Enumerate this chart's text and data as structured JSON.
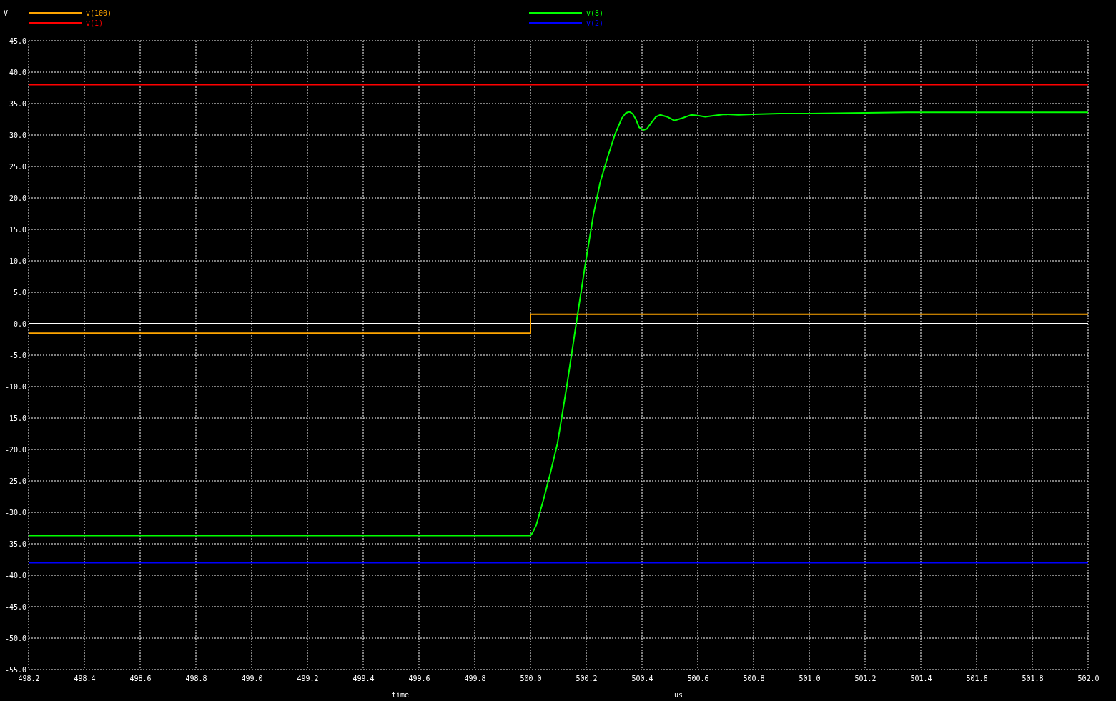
{
  "chart_data": {
    "type": "line",
    "ylabel": "V",
    "xlabel": "time",
    "annotations": [
      "us"
    ],
    "xlim": [
      498.2,
      502.0
    ],
    "xticks": [
      {
        "value": 498.2,
        "label": "498.2"
      },
      {
        "value": 498.4,
        "label": "498.4"
      },
      {
        "value": 498.6,
        "label": "498.6"
      },
      {
        "value": 498.8,
        "label": "498.8"
      },
      {
        "value": 499.0,
        "label": "499.0"
      },
      {
        "value": 499.2,
        "label": "499.2"
      },
      {
        "value": 499.4,
        "label": "499.4"
      },
      {
        "value": 499.6,
        "label": "499.6"
      },
      {
        "value": 499.8,
        "label": "499.8"
      },
      {
        "value": 500.0,
        "label": "500.0"
      },
      {
        "value": 500.2,
        "label": "500.2"
      },
      {
        "value": 500.4,
        "label": "500.4"
      },
      {
        "value": 500.6,
        "label": "500.6"
      },
      {
        "value": 500.8,
        "label": "500.8"
      },
      {
        "value": 501.0,
        "label": "501.0"
      },
      {
        "value": 501.2,
        "label": "501.2"
      },
      {
        "value": 501.4,
        "label": "501.4"
      },
      {
        "value": 501.6,
        "label": "501.6"
      },
      {
        "value": 501.8,
        "label": "501.8"
      },
      {
        "value": 502.0,
        "label": "502.0"
      }
    ],
    "ylim": [
      -55,
      45
    ],
    "yticks": [
      {
        "value": -55,
        "label": "-55.0"
      },
      {
        "value": -50,
        "label": "-50.0"
      },
      {
        "value": -45,
        "label": "-45.0"
      },
      {
        "value": -40,
        "label": "-40.0"
      },
      {
        "value": -35,
        "label": "-35.0"
      },
      {
        "value": -30,
        "label": "-30.0"
      },
      {
        "value": -25,
        "label": "-25.0"
      },
      {
        "value": -20,
        "label": "-20.0"
      },
      {
        "value": -15,
        "label": "-15.0"
      },
      {
        "value": -10,
        "label": "-10.0"
      },
      {
        "value": -5,
        "label": "-5.0"
      },
      {
        "value": 0,
        "label": "0.0"
      },
      {
        "value": 5,
        "label": "5.0"
      },
      {
        "value": 10,
        "label": "10.0"
      },
      {
        "value": 15,
        "label": "15.0"
      },
      {
        "value": 20,
        "label": "20.0"
      },
      {
        "value": 25,
        "label": "25.0"
      },
      {
        "value": 30,
        "label": "30.0"
      },
      {
        "value": 35,
        "label": "35.0"
      },
      {
        "value": 40,
        "label": "40.0"
      },
      {
        "value": 45,
        "label": "45.0"
      }
    ],
    "grid": true,
    "legend": "top",
    "line_style": "solid",
    "ref_lines": [
      {
        "axis": "y",
        "value": 0,
        "label": null,
        "color": "#ffffff"
      }
    ],
    "series": [
      {
        "name": "v(100)",
        "color": "#ffa500",
        "x": [
          498.2,
          500.0,
          500.0,
          502.0
        ],
        "values": [
          -1.5,
          -1.5,
          1.5,
          1.5
        ]
      },
      {
        "name": "v(1)",
        "color": "#ff0000",
        "x": [
          498.2,
          502.0
        ],
        "values": [
          38.0,
          38.0
        ]
      },
      {
        "name": "v(8)",
        "color": "#00ff00",
        "x": [
          498.2,
          500.0,
          500.008,
          500.021,
          500.046,
          500.07,
          500.097,
          500.13,
          500.164,
          500.195,
          500.226,
          500.25,
          500.277,
          500.303,
          500.328,
          500.342,
          500.354,
          500.366,
          500.378,
          500.39,
          500.405,
          500.418,
          500.431,
          500.45,
          500.465,
          500.49,
          500.516,
          500.545,
          500.576,
          500.6,
          500.627,
          500.66,
          500.695,
          500.746,
          500.8,
          500.892,
          501.0,
          501.35,
          502.0
        ],
        "values": [
          -33.7,
          -33.7,
          -33.2,
          -32.0,
          -28.1,
          -24.0,
          -19.0,
          -10.0,
          0.0,
          9.0,
          17.4,
          22.5,
          26.5,
          30.1,
          32.7,
          33.5,
          33.7,
          33.4,
          32.5,
          31.2,
          30.8,
          31.0,
          31.8,
          32.9,
          33.2,
          32.9,
          32.3,
          32.7,
          33.2,
          33.1,
          32.9,
          33.1,
          33.3,
          33.2,
          33.3,
          33.4,
          33.4,
          33.6,
          33.6
        ]
      },
      {
        "name": "v(2)",
        "color": "#0000ff",
        "x": [
          498.2,
          502.0
        ],
        "values": [
          -38.0,
          -38.0
        ]
      }
    ]
  }
}
